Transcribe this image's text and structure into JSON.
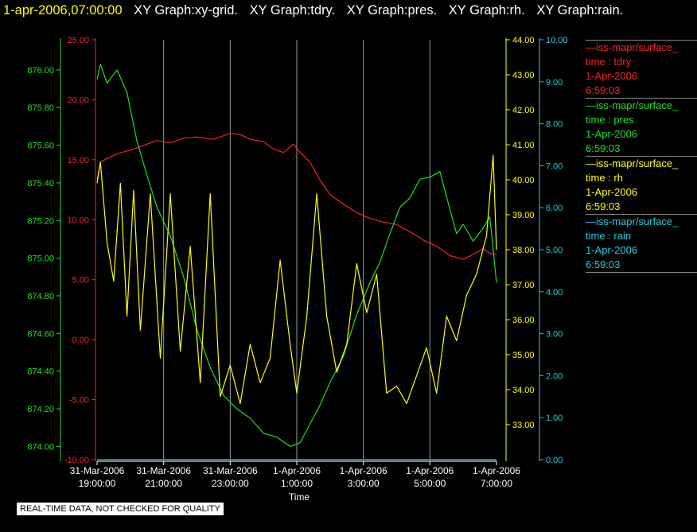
{
  "header": {
    "timestamp": "1-apr-2006,07:00:00",
    "graph_titles": [
      "XY Graph:xy-grid.",
      "XY Graph:tdry.",
      "XY Graph:pres.",
      "XY Graph:rh.",
      "XY Graph:rain."
    ]
  },
  "quality_notice": "REAL-TIME DATA, NOT CHECKED FOR QUALITY",
  "legend": [
    {
      "source": "—iss-mapr/surface_",
      "variable": "time : tdry",
      "date": "1-Apr-2006",
      "time": "6:59:03",
      "color": "#ff2020"
    },
    {
      "source": "—iss-mapr/surface_",
      "variable": "time : pres",
      "date": "1-Apr-2006",
      "time": "6:59:03",
      "color": "#20e020"
    },
    {
      "source": "—iss-mapr/surface_",
      "variable": "time : rh",
      "date": "1-Apr-2006",
      "time": "6:59:03",
      "color": "#ffff00"
    },
    {
      "source": "—iss-mapr/surface_",
      "variable": "time : rain",
      "date": "1-Apr-2006",
      "time": "6:59:03",
      "color": "#20d0e0"
    }
  ],
  "chart_data": {
    "type": "line",
    "xlabel": "Time",
    "x_range_hours": [
      19,
      31
    ],
    "x_ticks": [
      {
        "h": 19,
        "date": "31-Mar-2006",
        "time": "19:00:00"
      },
      {
        "h": 21,
        "date": "31-Mar-2006",
        "time": "21:00:00"
      },
      {
        "h": 23,
        "date": "31-Mar-2006",
        "time": "23:00:00"
      },
      {
        "h": 25,
        "date": "1-Apr-2006",
        "time": "1:00:00"
      },
      {
        "h": 27,
        "date": "1-Apr-2006",
        "time": "3:00:00"
      },
      {
        "h": 29,
        "date": "1-Apr-2006",
        "time": "5:00:00"
      },
      {
        "h": 31,
        "date": "1-Apr-2006",
        "time": "7:00:00"
      }
    ],
    "grid": "vertical",
    "axes": {
      "tdry": {
        "color": "#ff2020",
        "ylim": [
          -10,
          25
        ],
        "ticks": [
          "25.00",
          "20.00",
          "15.00",
          "10.00",
          "5.00",
          "0.00",
          "-5.00",
          "-10.00"
        ]
      },
      "pres": {
        "color": "#20e020",
        "ylim": [
          873.93,
          876.16
        ],
        "ticks": [
          "876.00",
          "875.80",
          "875.60",
          "875.40",
          "875.20",
          "875.00",
          "874.80",
          "874.60",
          "874.40",
          "874.20",
          "874.00"
        ]
      },
      "rh": {
        "color": "#ffff00",
        "ylim": [
          32.0,
          44.0
        ],
        "ticks": [
          "44.00",
          "43.00",
          "42.00",
          "41.00",
          "40.00",
          "39.00",
          "38.00",
          "37.00",
          "36.00",
          "35.00",
          "34.00",
          "33.00"
        ]
      },
      "rain": {
        "color": "#20d0e0",
        "ylim": [
          0.0,
          10.0
        ],
        "ticks": [
          "10.00",
          "9.00",
          "8.00",
          "7.00",
          "6.00",
          "5.00",
          "4.00",
          "3.00",
          "2.00",
          "1.00",
          "0.00"
        ]
      }
    },
    "series": [
      {
        "name": "tdry",
        "axis": "tdry",
        "color": "#ff2020",
        "x": [
          19.0,
          19.1,
          19.3,
          19.6,
          20.0,
          20.4,
          20.8,
          21.2,
          21.6,
          22.0,
          22.5,
          23.0,
          23.3,
          23.6,
          24.0,
          24.3,
          24.6,
          24.9,
          25.1,
          25.4,
          25.7,
          26.0,
          26.4,
          26.8,
          27.2,
          27.6,
          28.0,
          28.4,
          28.8,
          29.2,
          29.6,
          30.0,
          30.3,
          30.6,
          30.8,
          31.0
        ],
        "values": [
          13.4,
          14.8,
          15.1,
          15.5,
          15.8,
          16.2,
          16.6,
          16.4,
          16.8,
          16.9,
          16.7,
          17.2,
          17.1,
          16.7,
          16.5,
          15.9,
          15.6,
          16.3,
          15.6,
          14.8,
          13.3,
          12.1,
          11.3,
          10.6,
          10.1,
          9.8,
          9.6,
          9.0,
          8.3,
          7.8,
          7.0,
          6.7,
          7.1,
          7.6,
          7.2,
          7.1
        ]
      },
      {
        "name": "pres",
        "axis": "pres",
        "color": "#20e020",
        "x": [
          19.0,
          19.1,
          19.3,
          19.6,
          19.9,
          20.2,
          20.5,
          20.8,
          21.2,
          21.6,
          22.0,
          22.4,
          22.8,
          23.2,
          23.6,
          24.0,
          24.4,
          24.8,
          25.1,
          25.4,
          25.7,
          26.0,
          26.4,
          26.8,
          27.2,
          27.5,
          27.8,
          28.1,
          28.4,
          28.7,
          29.0,
          29.3,
          29.6,
          29.8,
          30.0,
          30.3,
          30.6,
          30.8,
          31.0
        ],
        "values": [
          875.95,
          876.03,
          875.93,
          876.0,
          875.88,
          875.62,
          875.44,
          875.27,
          875.12,
          874.9,
          874.62,
          874.42,
          874.27,
          874.2,
          874.15,
          874.07,
          874.05,
          874.0,
          874.02,
          874.12,
          874.22,
          874.34,
          874.48,
          874.7,
          874.87,
          874.98,
          875.13,
          875.27,
          875.32,
          875.42,
          875.43,
          875.46,
          875.26,
          875.13,
          875.18,
          875.09,
          875.16,
          875.22,
          874.87
        ]
      },
      {
        "name": "rh",
        "axis": "rh",
        "color": "#ffff00",
        "x": [
          19.0,
          19.1,
          19.3,
          19.5,
          19.7,
          19.9,
          20.1,
          20.3,
          20.6,
          20.9,
          21.2,
          21.5,
          21.8,
          22.1,
          22.4,
          22.7,
          23.0,
          23.3,
          23.6,
          23.9,
          24.2,
          24.5,
          24.8,
          25.0,
          25.3,
          25.6,
          25.9,
          26.2,
          26.5,
          26.8,
          27.1,
          27.4,
          27.7,
          28.0,
          28.3,
          28.6,
          28.9,
          29.2,
          29.5,
          29.8,
          30.1,
          30.4,
          30.7,
          30.9,
          31.0
        ],
        "values": [
          39.9,
          40.5,
          38.2,
          37.1,
          39.9,
          36.1,
          39.7,
          35.7,
          39.6,
          34.9,
          39.6,
          35.1,
          38.1,
          34.2,
          39.6,
          33.8,
          34.7,
          33.6,
          35.3,
          34.2,
          34.9,
          37.7,
          35.3,
          33.9,
          36.1,
          39.6,
          36.1,
          34.5,
          35.3,
          37.6,
          36.2,
          37.3,
          33.9,
          34.1,
          33.6,
          34.4,
          35.2,
          33.9,
          36.1,
          35.4,
          36.7,
          37.3,
          38.4,
          40.7,
          38.0
        ]
      },
      {
        "name": "rain",
        "axis": "rain",
        "color": "#20d0e0",
        "x": [
          19.0,
          31.0
        ],
        "values": [
          0.0,
          0.0
        ]
      }
    ]
  }
}
